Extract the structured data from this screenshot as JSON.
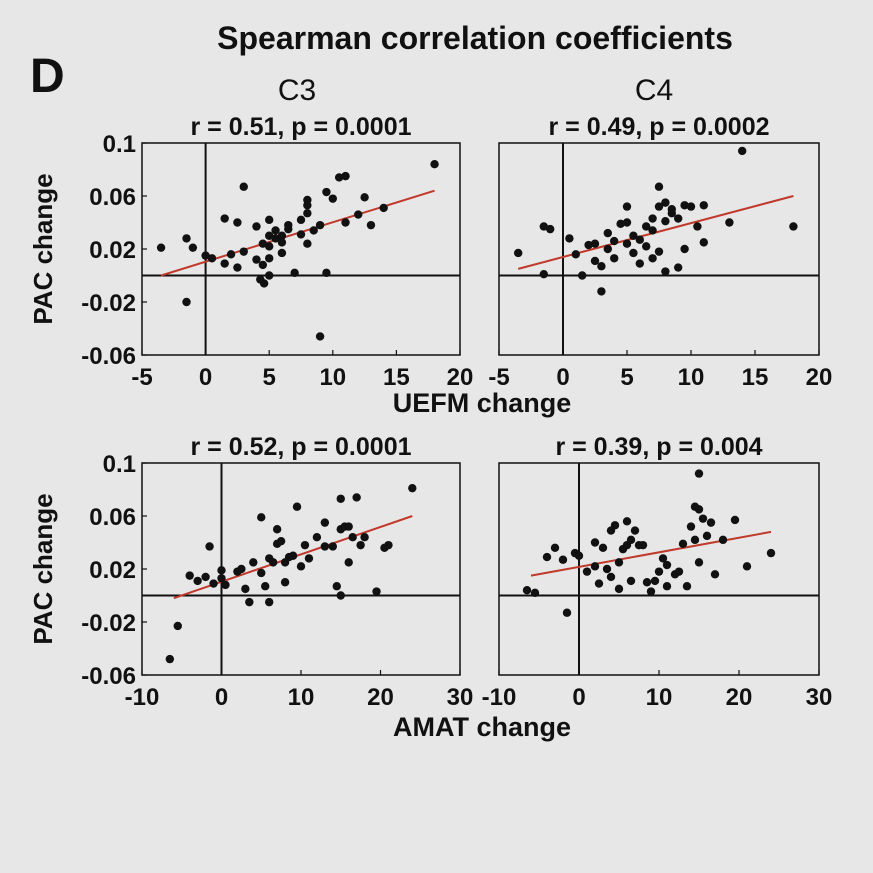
{
  "panel_letter": "D",
  "figure_title": "Spearman correlation coefficients",
  "column_titles": [
    "C3",
    "C4"
  ],
  "colors": {
    "points": "#111111",
    "fit": "#c0392b",
    "axes": "#111111",
    "background": "#e7e7e7"
  },
  "chart_data": [
    {
      "type": "scatter",
      "id": "uefm-c3",
      "title": "r = 0.51, p = 0.0001",
      "xlabel": "UEFM change",
      "ylabel": "PAC change",
      "xlim": [
        -5,
        20
      ],
      "ylim": [
        -0.06,
        0.1
      ],
      "xticks": [
        "-5",
        "0",
        "5",
        "10",
        "15",
        "20"
      ],
      "yticks": [
        "0.1",
        "0.06",
        "0.02",
        "-0.02",
        "-0.06"
      ],
      "fit": {
        "x": [
          -3.5,
          18
        ],
        "y": [
          0.0,
          0.064
        ]
      },
      "points": [
        [
          -3.5,
          0.021
        ],
        [
          -1.5,
          0.028
        ],
        [
          -1,
          0.021
        ],
        [
          0,
          0.015
        ],
        [
          0.5,
          0.013
        ],
        [
          -1.5,
          -0.02
        ],
        [
          1.5,
          0.009
        ],
        [
          2,
          0.016
        ],
        [
          2.5,
          0.006
        ],
        [
          1.5,
          0.043
        ],
        [
          2.5,
          0.04
        ],
        [
          3,
          0.067
        ],
        [
          3,
          0.018
        ],
        [
          4,
          0.037
        ],
        [
          4,
          0.012
        ],
        [
          4.5,
          0.024
        ],
        [
          4.5,
          0.008
        ],
        [
          5,
          0.042
        ],
        [
          5,
          0.03
        ],
        [
          5,
          0.022
        ],
        [
          5,
          0.013
        ],
        [
          5.5,
          0.028
        ],
        [
          5.5,
          0.034
        ],
        [
          6,
          0.03
        ],
        [
          6,
          0.017
        ],
        [
          6,
          0.025
        ],
        [
          4.3,
          -0.003
        ],
        [
          4.6,
          -0.006
        ],
        [
          5,
          0.0
        ],
        [
          6.5,
          0.035
        ],
        [
          7,
          0.002
        ],
        [
          7.5,
          0.031
        ],
        [
          7.5,
          0.042
        ],
        [
          8,
          0.053
        ],
        [
          8,
          0.047
        ],
        [
          8,
          0.024
        ],
        [
          8.5,
          0.034
        ],
        [
          9,
          0.038
        ],
        [
          9.5,
          0.063
        ],
        [
          10,
          0.058
        ],
        [
          10.5,
          0.074
        ],
        [
          11,
          0.075
        ],
        [
          11,
          0.04
        ],
        [
          9.5,
          0.002
        ],
        [
          9,
          -0.046
        ],
        [
          12.5,
          0.059
        ],
        [
          13,
          0.038
        ],
        [
          14,
          0.051
        ],
        [
          18,
          0.084
        ],
        [
          6.5,
          0.038
        ],
        [
          8,
          0.057
        ],
        [
          12,
          0.046
        ]
      ]
    },
    {
      "type": "scatter",
      "id": "uefm-c4",
      "title": "r = 0.49, p = 0.0002",
      "xlabel": "UEFM change",
      "ylabel": "",
      "xlim": [
        -5,
        20
      ],
      "ylim": [
        -0.06,
        0.1
      ],
      "xticks": [
        "-5",
        "0",
        "5",
        "10",
        "15",
        "20"
      ],
      "yticks": [],
      "fit": {
        "x": [
          -3.5,
          18
        ],
        "y": [
          0.005,
          0.06
        ]
      },
      "points": [
        [
          -3.5,
          0.017
        ],
        [
          -1.5,
          0.037
        ],
        [
          -1,
          0.035
        ],
        [
          -1.5,
          0.001
        ],
        [
          0.5,
          0.028
        ],
        [
          1,
          0.016
        ],
        [
          1.5,
          0.0
        ],
        [
          2,
          0.023
        ],
        [
          2.5,
          0.011
        ],
        [
          2.5,
          0.024
        ],
        [
          3,
          0.007
        ],
        [
          3,
          -0.012
        ],
        [
          3.5,
          0.02
        ],
        [
          3.5,
          0.032
        ],
        [
          4,
          0.026
        ],
        [
          4,
          0.013
        ],
        [
          4.5,
          0.039
        ],
        [
          5,
          0.024
        ],
        [
          5,
          0.04
        ],
        [
          5,
          0.052
        ],
        [
          5.5,
          0.03
        ],
        [
          5.5,
          0.017
        ],
        [
          6,
          0.027
        ],
        [
          6,
          0.009
        ],
        [
          6.5,
          0.022
        ],
        [
          7,
          0.043
        ],
        [
          7,
          0.034
        ],
        [
          7.5,
          0.067
        ],
        [
          7.5,
          0.052
        ],
        [
          8,
          0.055
        ],
        [
          8,
          0.041
        ],
        [
          8.5,
          0.05
        ],
        [
          8.5,
          0.047
        ],
        [
          9,
          0.043
        ],
        [
          9.5,
          0.02
        ],
        [
          9.5,
          0.053
        ],
        [
          10,
          0.052
        ],
        [
          10.5,
          0.037
        ],
        [
          11,
          0.025
        ],
        [
          11,
          0.053
        ],
        [
          13,
          0.04
        ],
        [
          14,
          0.094
        ],
        [
          18,
          0.037
        ],
        [
          7,
          0.013
        ],
        [
          8,
          0.003
        ],
        [
          6.5,
          0.037
        ],
        [
          7.5,
          0.018
        ],
        [
          9,
          0.006
        ]
      ]
    },
    {
      "type": "scatter",
      "id": "amat-c3",
      "title": "r = 0.52, p = 0.0001",
      "xlabel": "AMAT change",
      "ylabel": "PAC change",
      "xlim": [
        -10,
        30
      ],
      "ylim": [
        -0.06,
        0.1
      ],
      "xticks": [
        "-10",
        "0",
        "10",
        "20",
        "30"
      ],
      "yticks": [
        "0.1",
        "0.06",
        "0.02",
        "-0.02",
        "-0.06"
      ],
      "fit": {
        "x": [
          -6,
          24
        ],
        "y": [
          -0.002,
          0.06
        ]
      },
      "points": [
        [
          -6.5,
          -0.048
        ],
        [
          -5.5,
          -0.023
        ],
        [
          -3,
          0.011
        ],
        [
          -2,
          0.014
        ],
        [
          -4,
          0.015
        ],
        [
          -1,
          0.009
        ],
        [
          -1.5,
          0.037
        ],
        [
          0,
          0.019
        ],
        [
          0,
          0.013
        ],
        [
          0.5,
          0.008
        ],
        [
          2,
          0.018
        ],
        [
          2.5,
          0.02
        ],
        [
          3,
          0.005
        ],
        [
          3.5,
          -0.005
        ],
        [
          4,
          0.025
        ],
        [
          5,
          0.017
        ],
        [
          5,
          0.059
        ],
        [
          5.5,
          0.007
        ],
        [
          6,
          0.028
        ],
        [
          6,
          -0.005
        ],
        [
          6.5,
          0.025
        ],
        [
          7,
          0.05
        ],
        [
          7,
          0.039
        ],
        [
          7.5,
          0.041
        ],
        [
          8,
          0.025
        ],
        [
          8,
          0.01
        ],
        [
          8.5,
          0.029
        ],
        [
          9,
          0.03
        ],
        [
          9.5,
          0.067
        ],
        [
          10,
          0.022
        ],
        [
          10.5,
          0.038
        ],
        [
          11,
          0.028
        ],
        [
          12,
          0.044
        ],
        [
          13,
          0.055
        ],
        [
          13,
          0.037
        ],
        [
          14,
          0.037
        ],
        [
          14.5,
          0.007
        ],
        [
          15,
          0.05
        ],
        [
          15,
          0.073
        ],
        [
          15.5,
          0.052
        ],
        [
          16,
          0.052
        ],
        [
          16.5,
          0.044
        ],
        [
          17,
          0.074
        ],
        [
          17.5,
          0.038
        ],
        [
          18,
          0.044
        ],
        [
          19.5,
          0.003
        ],
        [
          20.5,
          0.036
        ],
        [
          21,
          0.038
        ],
        [
          24,
          0.081
        ],
        [
          15,
          0.0
        ],
        [
          16,
          0.025
        ]
      ]
    },
    {
      "type": "scatter",
      "id": "amat-c4",
      "title": "r = 0.39, p = 0.004",
      "xlabel": "AMAT change",
      "ylabel": "",
      "xlim": [
        -10,
        30
      ],
      "ylim": [
        -0.06,
        0.1
      ],
      "xticks": [
        "-10",
        "0",
        "10",
        "20",
        "30"
      ],
      "yticks": [],
      "fit": {
        "x": [
          -6,
          24
        ],
        "y": [
          0.015,
          0.048
        ]
      },
      "points": [
        [
          -6.5,
          0.004
        ],
        [
          -5.5,
          0.002
        ],
        [
          -4,
          0.029
        ],
        [
          -3,
          0.036
        ],
        [
          -2,
          0.027
        ],
        [
          -1.5,
          -0.013
        ],
        [
          -0.5,
          0.032
        ],
        [
          0,
          0.03
        ],
        [
          1,
          0.018
        ],
        [
          2,
          0.022
        ],
        [
          2,
          0.04
        ],
        [
          2.5,
          0.009
        ],
        [
          3,
          0.036
        ],
        [
          3.5,
          0.02
        ],
        [
          4,
          0.014
        ],
        [
          4,
          0.049
        ],
        [
          4.5,
          0.053
        ],
        [
          5,
          0.025
        ],
        [
          5,
          0.005
        ],
        [
          5.5,
          0.035
        ],
        [
          6,
          0.056
        ],
        [
          6,
          0.038
        ],
        [
          6.5,
          0.011
        ],
        [
          6.5,
          0.042
        ],
        [
          7,
          0.049
        ],
        [
          7.5,
          0.038
        ],
        [
          8,
          0.038
        ],
        [
          8.5,
          0.01
        ],
        [
          9,
          0.003
        ],
        [
          9.5,
          0.011
        ],
        [
          10,
          0.018
        ],
        [
          10.5,
          0.028
        ],
        [
          11,
          0.023
        ],
        [
          12,
          0.016
        ],
        [
          12.5,
          0.018
        ],
        [
          13,
          0.039
        ],
        [
          13.5,
          0.007
        ],
        [
          14,
          0.052
        ],
        [
          14.5,
          0.067
        ],
        [
          15,
          0.065
        ],
        [
          15,
          0.025
        ],
        [
          15.5,
          0.058
        ],
        [
          16,
          0.045
        ],
        [
          16.5,
          0.055
        ],
        [
          17,
          0.016
        ],
        [
          18,
          0.042
        ],
        [
          19.5,
          0.057
        ],
        [
          21,
          0.022
        ],
        [
          24,
          0.032
        ],
        [
          15,
          0.092
        ],
        [
          14.5,
          0.042
        ],
        [
          11,
          0.007
        ]
      ]
    }
  ],
  "shared_xlabels": [
    "UEFM change",
    "AMAT change"
  ]
}
